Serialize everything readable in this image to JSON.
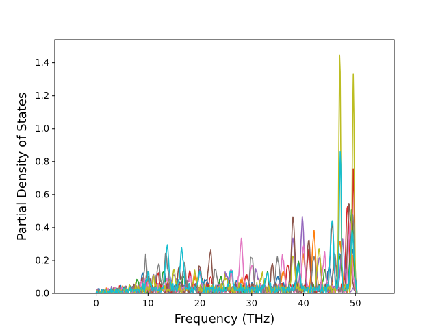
{
  "chart_data": {
    "type": "line",
    "title": "",
    "xlabel": "Frequency (THz)",
    "ylabel": "Partial Density of States",
    "xlim": [
      -8,
      57.5
    ],
    "ylim": [
      0,
      1.54
    ],
    "xticks": [
      0,
      10,
      20,
      30,
      40,
      50
    ],
    "yticks": [
      0.0,
      0.2,
      0.4,
      0.6,
      0.8,
      1.0,
      1.2,
      1.4
    ],
    "xtick_labels": [
      "0",
      "10",
      "20",
      "30",
      "40",
      "50"
    ],
    "ytick_labels": [
      "0.0",
      "0.2",
      "0.4",
      "0.6",
      "0.8",
      "1.0",
      "1.2",
      "1.4"
    ],
    "grid": false,
    "legend": false,
    "colors": [
      "#1f77b4",
      "#ff7f0e",
      "#2ca02c",
      "#d62728",
      "#9467bd",
      "#8c564b",
      "#e377c2",
      "#7f7f7f",
      "#bcbd22",
      "#17becf"
    ],
    "series": [
      {
        "peaks": [
          [
            9,
            0.08
          ],
          [
            13,
            0.09
          ],
          [
            16,
            0.07
          ],
          [
            21,
            0.06
          ],
          [
            27,
            0.06
          ],
          [
            35,
            0.09
          ],
          [
            39,
            0.18
          ],
          [
            45,
            0.12
          ],
          [
            47,
            0.22
          ],
          [
            49.5,
            0.25
          ]
        ]
      },
      {
        "peaks": [
          [
            10,
            0.06
          ],
          [
            14,
            0.07
          ],
          [
            19,
            0.06
          ],
          [
            28,
            0.07
          ],
          [
            36,
            0.12
          ],
          [
            40,
            0.2
          ],
          [
            42,
            0.35
          ],
          [
            46,
            0.15
          ],
          [
            47,
            0.3
          ],
          [
            49.5,
            0.2
          ]
        ]
      },
      {
        "peaks": [
          [
            8,
            0.05
          ],
          [
            13,
            0.1
          ],
          [
            17,
            0.08
          ],
          [
            24,
            0.07
          ],
          [
            33,
            0.08
          ],
          [
            39,
            0.15
          ],
          [
            44,
            0.1
          ],
          [
            47,
            0.2
          ],
          [
            49.3,
            0.45
          ]
        ]
      },
      {
        "peaks": [
          [
            9,
            0.07
          ],
          [
            12,
            0.08
          ],
          [
            18,
            0.09
          ],
          [
            22,
            0.08
          ],
          [
            29,
            0.1
          ],
          [
            37,
            0.15
          ],
          [
            41,
            0.22
          ],
          [
            46,
            0.18
          ],
          [
            48.5,
            0.5
          ],
          [
            49.6,
            0.72
          ]
        ]
      },
      {
        "peaks": [
          [
            11,
            0.08
          ],
          [
            15,
            0.1
          ],
          [
            20,
            0.09
          ],
          [
            25,
            0.1
          ],
          [
            31,
            0.12
          ],
          [
            38,
            0.3
          ],
          [
            39.8,
            0.41
          ],
          [
            43,
            0.2
          ],
          [
            47.5,
            0.3
          ]
        ]
      },
      {
        "peaks": [
          [
            10,
            0.09
          ],
          [
            16,
            0.12
          ],
          [
            20,
            0.14
          ],
          [
            22,
            0.23
          ],
          [
            26,
            0.1
          ],
          [
            34,
            0.15
          ],
          [
            38,
            0.43
          ],
          [
            41,
            0.3
          ],
          [
            45.5,
            0.4
          ],
          [
            48.8,
            0.51
          ]
        ]
      },
      {
        "peaks": [
          [
            9,
            0.06
          ],
          [
            14,
            0.1
          ],
          [
            18,
            0.08
          ],
          [
            26,
            0.11
          ],
          [
            28,
            0.28
          ],
          [
            30,
            0.15
          ],
          [
            36,
            0.2
          ],
          [
            40,
            0.25
          ],
          [
            44,
            0.2
          ],
          [
            49,
            0.4
          ]
        ]
      },
      {
        "peaks": [
          [
            9.5,
            0.18
          ],
          [
            12,
            0.15
          ],
          [
            13.5,
            0.2
          ],
          [
            17,
            0.15
          ],
          [
            23,
            0.12
          ],
          [
            30,
            0.2
          ],
          [
            35,
            0.2
          ],
          [
            42,
            0.2
          ],
          [
            46,
            0.22
          ],
          [
            49.5,
            0.45
          ]
        ]
      },
      {
        "peaks": [
          [
            11,
            0.07
          ],
          [
            15,
            0.09
          ],
          [
            19,
            0.1
          ],
          [
            25,
            0.08
          ],
          [
            32,
            0.1
          ],
          [
            38,
            0.2
          ],
          [
            43,
            0.25
          ],
          [
            47,
            1.46
          ],
          [
            49.6,
            1.34
          ]
        ]
      },
      {
        "peaks": [
          [
            10,
            0.1
          ],
          [
            13.7,
            0.27
          ],
          [
            16.5,
            0.24
          ],
          [
            20,
            0.1
          ],
          [
            26,
            0.12
          ],
          [
            33,
            0.1
          ],
          [
            39,
            0.15
          ],
          [
            45.5,
            0.43
          ],
          [
            47.1,
            0.86
          ],
          [
            49.4,
            0.35
          ]
        ]
      }
    ]
  }
}
